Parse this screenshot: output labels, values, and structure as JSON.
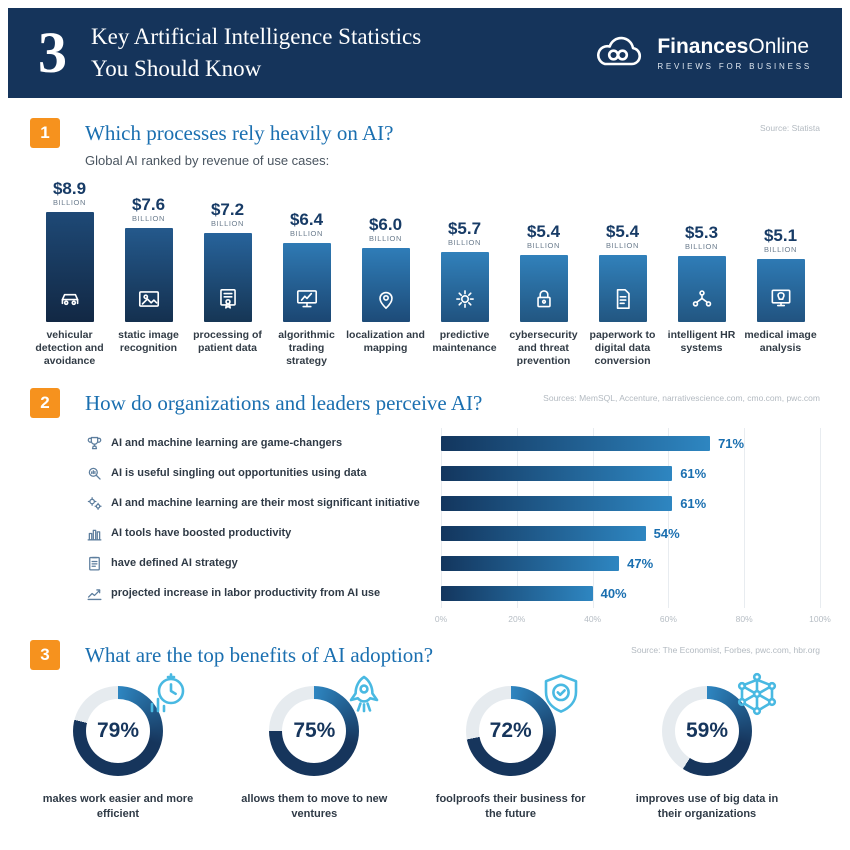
{
  "header": {
    "big_number": "3",
    "title_line1": "Key Artificial Intelligence Statistics",
    "title_line2": "You Should Know",
    "logo": {
      "name_bold": "Finances",
      "name_regular": "Online",
      "tagline": "REVIEWS FOR BUSINESS"
    }
  },
  "sections": [
    {
      "number": "1",
      "title": "Which processes rely heavily on AI?",
      "source": "Source: Statista",
      "subtitle": "Global AI ranked by revenue of use cases:"
    },
    {
      "number": "2",
      "title": "How do organizations and leaders perceive AI?",
      "source": "Sources: MemSQL, Accenture, narrativescience.com, cmo.com, pwc.com"
    },
    {
      "number": "3",
      "title": "What are the top benefits of AI adoption?",
      "source": "Source: The Economist, Forbes, pwc.com, hbr.org"
    }
  ],
  "colors": {
    "navy": "#15345b",
    "orange": "#f6921e",
    "title_blue": "#1a6fb0",
    "accent_blue": "#2e86c1",
    "icon_cyan": "#49b9e2"
  },
  "chart_data": [
    {
      "type": "bar",
      "title": "Global AI ranked by revenue of use cases",
      "ylabel": "Revenue ($ billion)",
      "ylim": [
        0,
        8.9
      ],
      "categories": [
        "vehicular detection and avoidance",
        "static image recognition",
        "processing of patient data",
        "algorithmic trading strategy",
        "localization and mapping",
        "predictive maintenance",
        "cybersecurity and threat prevention",
        "paperwork to digital data conversion",
        "intelligent HR systems",
        "medical image analysis"
      ],
      "values": [
        8.9,
        7.6,
        7.2,
        6.4,
        6.0,
        5.7,
        5.4,
        5.4,
        5.3,
        5.1
      ],
      "value_labels": [
        "$8.9",
        "$7.6",
        "$7.2",
        "$6.4",
        "$6.0",
        "$5.7",
        "$5.4",
        "$5.4",
        "$5.3",
        "$5.1"
      ],
      "unit_label": "BILLION",
      "icons": [
        "car-icon",
        "image-icon",
        "certificate-icon",
        "trading-chart-icon",
        "map-pin-icon",
        "gear-icon",
        "padlock-icon",
        "document-icon",
        "people-network-icon",
        "tooth-monitor-icon"
      ],
      "bar_colors_top": [
        "#1e4976",
        "#24598c",
        "#27639b",
        "#2f7ab4",
        "#2f7db8",
        "#3181bb",
        "#3181bb",
        "#3181bb",
        "#2f7db8",
        "#2e7ab4"
      ],
      "bar_colors_bottom": [
        "#122844",
        "#14304f",
        "#163655",
        "#1b4672",
        "#1d4b78",
        "#20527f",
        "#225681",
        "#225681",
        "#225681",
        "#215380"
      ]
    },
    {
      "type": "bar-horizontal",
      "xlim": [
        0,
        100
      ],
      "x_ticks": [
        "0%",
        "20%",
        "40%",
        "60%",
        "80%",
        "100%"
      ],
      "grid": true,
      "categories": [
        "AI and machine learning are game-changers",
        "AI is useful singling out opportunities using data",
        "AI and machine learning are their most significant initiative",
        "AI tools have boosted productivity",
        "have defined AI strategy",
        "projected increase in labor productivity from AI use"
      ],
      "values": [
        71,
        61,
        61,
        54,
        47,
        40
      ],
      "value_labels": [
        "71%",
        "61%",
        "61%",
        "54%",
        "47%",
        "40%"
      ],
      "icons": [
        "trophy-icon",
        "magnifier-data-icon",
        "gears-icon",
        "bar-chart-icon",
        "clipboard-icon",
        "growth-chart-icon"
      ],
      "bar_gradient": [
        "#13365e",
        "#2e86c1"
      ]
    },
    {
      "type": "donut",
      "values": [
        79,
        75,
        72,
        59
      ],
      "value_labels": [
        "79%",
        "75%",
        "72%",
        "59%"
      ],
      "categories": [
        "makes work easier and more efficient",
        "allows them to move to new ventures",
        "foolproofs their business for the future",
        "improves use of big data in their organizations"
      ],
      "icons": [
        "efficiency-clock-icon",
        "rocket-icon",
        "shield-check-icon",
        "network-icon"
      ],
      "arc_color": "#16355c",
      "arc_start_color": "#2e86c1",
      "track_color": "#e6ebef"
    }
  ]
}
